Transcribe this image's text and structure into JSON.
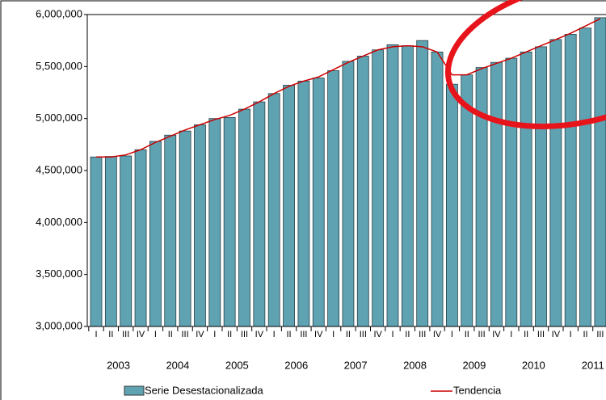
{
  "chart_data": {
    "type": "bar",
    "categories": [
      "I",
      "II",
      "III",
      "IV",
      "I",
      "II",
      "III",
      "IV",
      "I",
      "II",
      "III",
      "IV",
      "I",
      "II",
      "III",
      "IV",
      "I",
      "II",
      "III",
      "IV",
      "I",
      "II",
      "III",
      "IV",
      "I",
      "II",
      "III",
      "IV",
      "I",
      "II",
      "III",
      "IV",
      "I",
      "II",
      "III"
    ],
    "years": [
      "2003",
      "2004",
      "2005",
      "2006",
      "2007",
      "2008",
      "2009",
      "2010",
      "2011"
    ],
    "series": [
      {
        "name": "Serie Desestacionalizada",
        "color": "#5fa3b3",
        "values": [
          4630000,
          4635000,
          4640000,
          4700000,
          4780000,
          4840000,
          4880000,
          4940000,
          5000000,
          5010000,
          5090000,
          5160000,
          5240000,
          5320000,
          5360000,
          5390000,
          5460000,
          5550000,
          5600000,
          5660000,
          5710000,
          5700000,
          5750000,
          5640000,
          5330000,
          5420000,
          5490000,
          5540000,
          5580000,
          5640000,
          5690000,
          5760000,
          5810000,
          5870000,
          5970000
        ]
      },
      {
        "name": "Tendencia",
        "type": "line",
        "color": "#cc0000",
        "values": [
          4630000,
          4630000,
          4650000,
          4700000,
          4770000,
          4830000,
          4890000,
          4940000,
          4990000,
          5030000,
          5090000,
          5160000,
          5240000,
          5310000,
          5360000,
          5400000,
          5470000,
          5540000,
          5600000,
          5660000,
          5690000,
          5700000,
          5690000,
          5640000,
          5420000,
          5420000,
          5480000,
          5530000,
          5580000,
          5640000,
          5700000,
          5760000,
          5820000,
          5890000,
          5960000
        ]
      }
    ],
    "ylim": [
      3000000,
      6000000
    ],
    "yticks": [
      {
        "value": 3000000,
        "label": "3,000,000"
      },
      {
        "value": 3500000,
        "label": "3,500,000"
      },
      {
        "value": 4000000,
        "label": "4,000,000"
      },
      {
        "value": 4500000,
        "label": "4,500,000"
      },
      {
        "value": 5000000,
        "label": "5,000,000"
      },
      {
        "value": 5500000,
        "label": "5,500,000"
      },
      {
        "value": 6000000,
        "label": "6,000,000"
      }
    ]
  }
}
